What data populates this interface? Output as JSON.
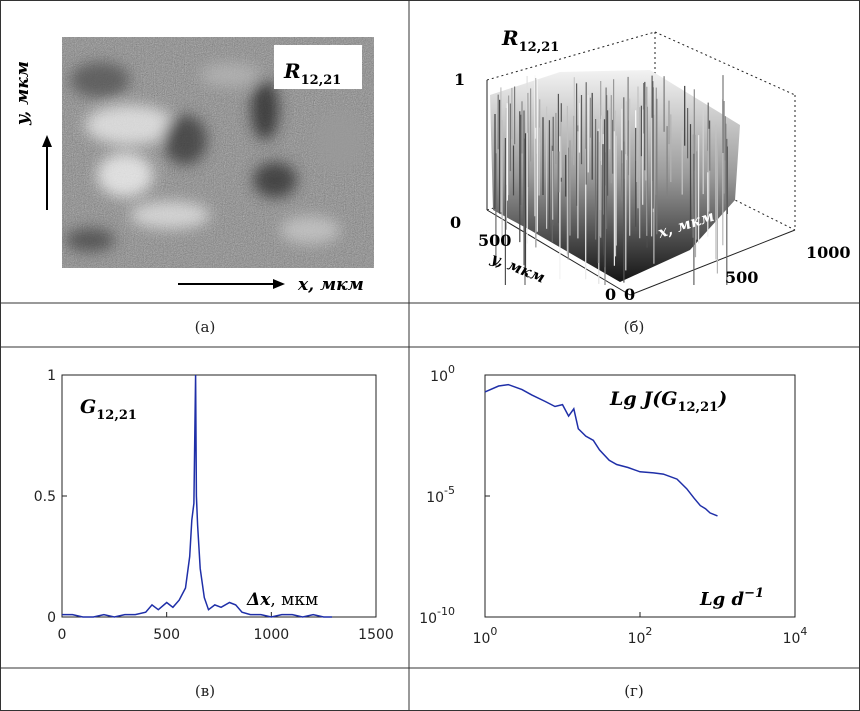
{
  "captions": {
    "a": "(а)",
    "b": "(б)",
    "v": "(в)",
    "g": "(г)"
  },
  "panel_a": {
    "label_main": "R",
    "label_sub": "12,21",
    "x_axis_label": "x, мкм",
    "y_axis_label": "y, мкм"
  },
  "panel_b": {
    "label_main": "R",
    "label_sub": "12,21",
    "z_ticks": [
      "1",
      "0"
    ],
    "y_ticks": [
      "500",
      "0"
    ],
    "x_ticks": [
      "0",
      "500",
      "1000"
    ],
    "y_axis_label": "y, мкм",
    "x_axis_label": "x, мкм"
  },
  "chart_data": [
    {
      "type": "line",
      "panel": "в",
      "label_main": "G",
      "label_sub": "12,21",
      "xlabel_prefix": "Δx",
      "xlabel_unit": ", мкм",
      "xlim": [
        0,
        1500
      ],
      "ylim": [
        0,
        1
      ],
      "x_ticks": [
        "0",
        "500",
        "1000",
        "1500"
      ],
      "y_ticks": [
        "1",
        "0.5",
        "0"
      ],
      "series": [
        {
          "color": "#1f2fa8",
          "x": [
            0,
            50,
            100,
            150,
            200,
            250,
            300,
            350,
            400,
            430,
            460,
            500,
            530,
            560,
            590,
            610,
            620,
            630,
            638,
            642,
            648,
            660,
            680,
            700,
            730,
            760,
            800,
            830,
            860,
            900,
            950,
            1000,
            1050,
            1100,
            1150,
            1200,
            1250,
            1290
          ],
          "y": [
            0.01,
            0.01,
            0.0,
            0.0,
            0.01,
            0.0,
            0.01,
            0.01,
            0.02,
            0.05,
            0.03,
            0.06,
            0.04,
            0.07,
            0.12,
            0.25,
            0.4,
            0.47,
            1.0,
            0.5,
            0.38,
            0.2,
            0.08,
            0.03,
            0.05,
            0.04,
            0.06,
            0.05,
            0.02,
            0.01,
            0.01,
            0.0,
            0.01,
            0.01,
            0.0,
            0.01,
            0.0,
            0.0
          ]
        }
      ]
    },
    {
      "type": "line",
      "panel": "г",
      "scale": "log-log",
      "label_main": "Lg J(G",
      "label_sub": "12,21",
      "label_close": ")",
      "xlabel_main": "Lg d",
      "xlabel_sup": "−1",
      "xlim": [
        1,
        10000
      ],
      "ylim": [
        1e-10,
        1
      ],
      "x_ticks": [
        {
          "base": "10",
          "exp": "0"
        },
        {
          "base": "10",
          "exp": "2"
        },
        {
          "base": "10",
          "exp": "4"
        }
      ],
      "y_ticks": [
        {
          "base": "10",
          "exp": "0"
        },
        {
          "base": "10",
          "exp": "-5"
        },
        {
          "base": "10",
          "exp": "-10"
        }
      ],
      "series": [
        {
          "color": "#1f2fa8",
          "x": [
            1,
            1.5,
            2,
            3,
            4,
            6,
            8,
            10,
            12,
            14,
            16,
            20,
            25,
            30,
            40,
            50,
            70,
            100,
            150,
            200,
            300,
            400,
            500,
            600,
            700,
            800,
            1000
          ],
          "y": [
            0.2,
            0.35,
            0.4,
            0.25,
            0.15,
            0.08,
            0.05,
            0.06,
            0.02,
            0.04,
            0.006,
            0.003,
            0.002,
            0.0008,
            0.0003,
            0.0002,
            0.00015,
            0.0001,
            9e-05,
            8e-05,
            5e-05,
            2e-05,
            8e-06,
            4e-06,
            3e-06,
            2e-06,
            1.5e-06
          ]
        }
      ]
    }
  ]
}
